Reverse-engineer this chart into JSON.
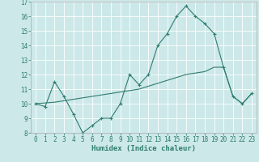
{
  "xlabel": "Humidex (Indice chaleur)",
  "line1_x": [
    0,
    1,
    2,
    3,
    4,
    5,
    6,
    7,
    8,
    9,
    10,
    11,
    12,
    13,
    14,
    15,
    16,
    17,
    18,
    19,
    20,
    21,
    22,
    23
  ],
  "line1_y": [
    10.0,
    9.8,
    11.5,
    10.5,
    9.3,
    8.0,
    8.5,
    9.0,
    9.0,
    10.0,
    12.0,
    11.3,
    12.0,
    14.0,
    14.8,
    16.0,
    16.7,
    16.0,
    15.5,
    14.8,
    12.5,
    10.5,
    10.0,
    10.7
  ],
  "line2_x": [
    0,
    1,
    2,
    3,
    4,
    5,
    6,
    7,
    8,
    9,
    10,
    11,
    12,
    13,
    14,
    15,
    16,
    17,
    18,
    19,
    20,
    21,
    22,
    23
  ],
  "line2_y": [
    10.0,
    10.05,
    10.1,
    10.2,
    10.3,
    10.4,
    10.5,
    10.6,
    10.7,
    10.8,
    10.9,
    11.0,
    11.2,
    11.4,
    11.6,
    11.8,
    12.0,
    12.1,
    12.2,
    12.5,
    12.5,
    10.5,
    10.0,
    10.7
  ],
  "line_color": "#2e7d6e",
  "bg_color": "#cce8e8",
  "grid_color": "#ffffff",
  "ylim": [
    8,
    17
  ],
  "xlim": [
    -0.5,
    23.5
  ],
  "yticks": [
    8,
    9,
    10,
    11,
    12,
    13,
    14,
    15,
    16,
    17
  ],
  "xticks": [
    0,
    1,
    2,
    3,
    4,
    5,
    6,
    7,
    8,
    9,
    10,
    11,
    12,
    13,
    14,
    15,
    16,
    17,
    18,
    19,
    20,
    21,
    22,
    23
  ]
}
